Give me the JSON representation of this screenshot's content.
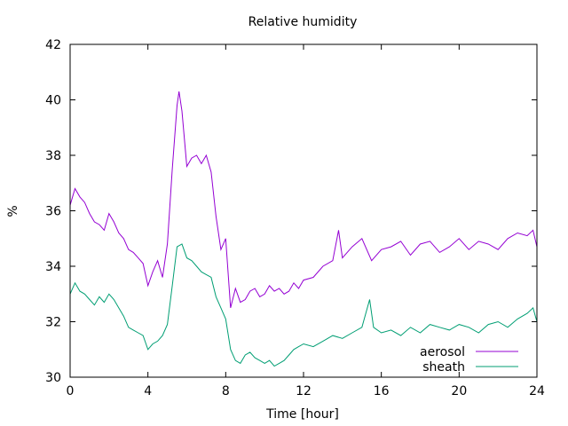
{
  "chart_data": {
    "type": "line",
    "title": "Relative humidity",
    "xlabel": "Time [hour]",
    "ylabel": "%",
    "xlim": [
      0,
      24
    ],
    "ylim": [
      30,
      42
    ],
    "xticks": [
      0,
      4,
      8,
      12,
      16,
      20,
      24
    ],
    "yticks": [
      30,
      32,
      34,
      36,
      38,
      40,
      42
    ],
    "grid": false,
    "legend_position": "bottom-right",
    "series": [
      {
        "name": "aerosol",
        "color": "#9400d3",
        "x": [
          0,
          0.25,
          0.5,
          0.75,
          1,
          1.25,
          1.5,
          1.75,
          2,
          2.25,
          2.5,
          2.75,
          3,
          3.25,
          3.5,
          3.75,
          4,
          4.25,
          4.5,
          4.75,
          5,
          5.25,
          5.5,
          5.6,
          5.75,
          6,
          6.25,
          6.5,
          6.75,
          7,
          7.25,
          7.5,
          7.75,
          8,
          8.25,
          8.5,
          8.75,
          9,
          9.25,
          9.5,
          9.75,
          10,
          10.25,
          10.5,
          10.75,
          11,
          11.25,
          11.5,
          11.75,
          12,
          12.5,
          13,
          13.5,
          13.8,
          14,
          14.5,
          15,
          15.5,
          16,
          16.5,
          17,
          17.5,
          18,
          18.5,
          19,
          19.5,
          20,
          20.5,
          21,
          21.5,
          22,
          22.5,
          23,
          23.5,
          23.8,
          24
        ],
        "y": [
          36.2,
          36.8,
          36.5,
          36.3,
          35.9,
          35.6,
          35.5,
          35.3,
          35.9,
          35.6,
          35.2,
          35.0,
          34.6,
          34.5,
          34.3,
          34.1,
          33.3,
          33.8,
          34.2,
          33.6,
          34.8,
          37.5,
          39.8,
          40.3,
          39.6,
          37.6,
          37.9,
          38.0,
          37.7,
          38.0,
          37.4,
          35.8,
          34.6,
          35.0,
          32.5,
          33.2,
          32.7,
          32.8,
          33.1,
          33.2,
          32.9,
          33.0,
          33.3,
          33.1,
          33.2,
          33.0,
          33.1,
          33.4,
          33.2,
          33.5,
          33.6,
          34.0,
          34.2,
          35.3,
          34.3,
          34.7,
          35.0,
          34.2,
          34.6,
          34.7,
          34.9,
          34.4,
          34.8,
          34.9,
          34.5,
          34.7,
          35.0,
          34.6,
          34.9,
          34.8,
          34.6,
          35.0,
          35.2,
          35.1,
          35.3,
          34.7
        ]
      },
      {
        "name": "sheath",
        "color": "#009e73",
        "x": [
          0,
          0.25,
          0.5,
          0.75,
          1,
          1.25,
          1.5,
          1.75,
          2,
          2.25,
          2.5,
          2.75,
          3,
          3.25,
          3.5,
          3.75,
          4,
          4.25,
          4.5,
          4.75,
          5,
          5.25,
          5.5,
          5.75,
          6,
          6.25,
          6.5,
          6.75,
          7,
          7.25,
          7.5,
          7.75,
          8,
          8.25,
          8.5,
          8.75,
          9,
          9.25,
          9.5,
          9.75,
          10,
          10.25,
          10.5,
          10.75,
          11,
          11.25,
          11.5,
          11.75,
          12,
          12.5,
          13,
          13.5,
          14,
          14.5,
          15,
          15.4,
          15.6,
          16,
          16.5,
          17,
          17.5,
          18,
          18.5,
          19,
          19.5,
          20,
          20.5,
          21,
          21.5,
          22,
          22.5,
          23,
          23.5,
          23.8,
          24
        ],
        "y": [
          33.0,
          33.4,
          33.1,
          33.0,
          32.8,
          32.6,
          32.9,
          32.7,
          33.0,
          32.8,
          32.5,
          32.2,
          31.8,
          31.7,
          31.6,
          31.5,
          31.0,
          31.2,
          31.3,
          31.5,
          31.9,
          33.3,
          34.7,
          34.8,
          34.3,
          34.2,
          34.0,
          33.8,
          33.7,
          33.6,
          32.9,
          32.5,
          32.1,
          31.0,
          30.6,
          30.5,
          30.8,
          30.9,
          30.7,
          30.6,
          30.5,
          30.6,
          30.4,
          30.5,
          30.6,
          30.8,
          31.0,
          31.1,
          31.2,
          31.1,
          31.3,
          31.5,
          31.4,
          31.6,
          31.8,
          32.8,
          31.8,
          31.6,
          31.7,
          31.5,
          31.8,
          31.6,
          31.9,
          31.8,
          31.7,
          31.9,
          31.8,
          31.6,
          31.9,
          32.0,
          31.8,
          32.1,
          32.3,
          32.5,
          32.0
        ]
      }
    ]
  }
}
